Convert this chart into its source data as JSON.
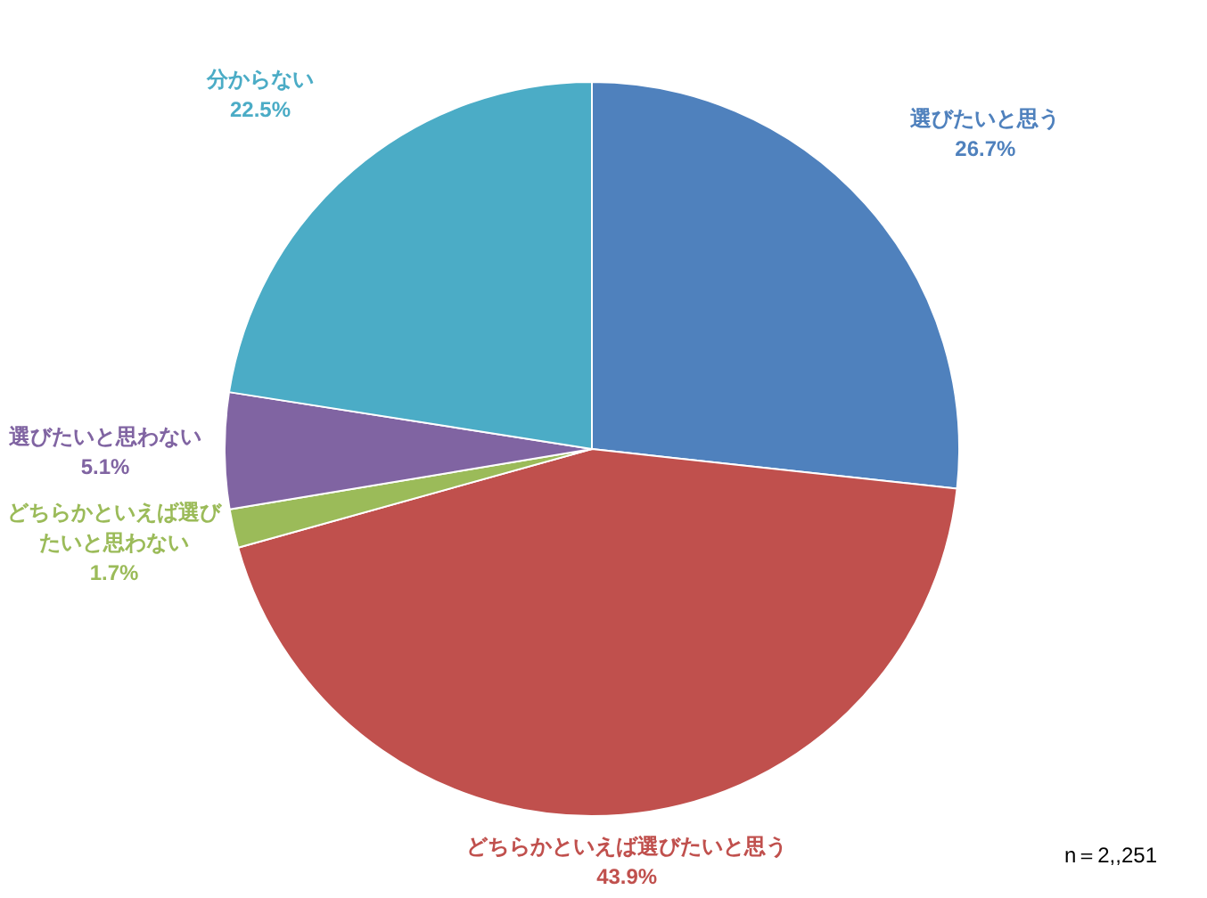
{
  "chart_data": {
    "type": "pie",
    "categories": [
      "選びたいと思う",
      "どちらかといえば選びたいと思う",
      "どちらかといえば選びたいと思わない",
      "選びたいと思わない",
      "分からない"
    ],
    "values": [
      26.7,
      43.9,
      1.7,
      5.1,
      22.5
    ],
    "colors": [
      "#4f81bd",
      "#c0504d",
      "#9bbb59",
      "#8064a2",
      "#4bacc6"
    ],
    "value_labels": [
      "26.7%",
      "43.9%",
      "1.7%",
      "5.1%",
      "22.5%"
    ],
    "annotations": [
      "n＝2,,251"
    ]
  }
}
